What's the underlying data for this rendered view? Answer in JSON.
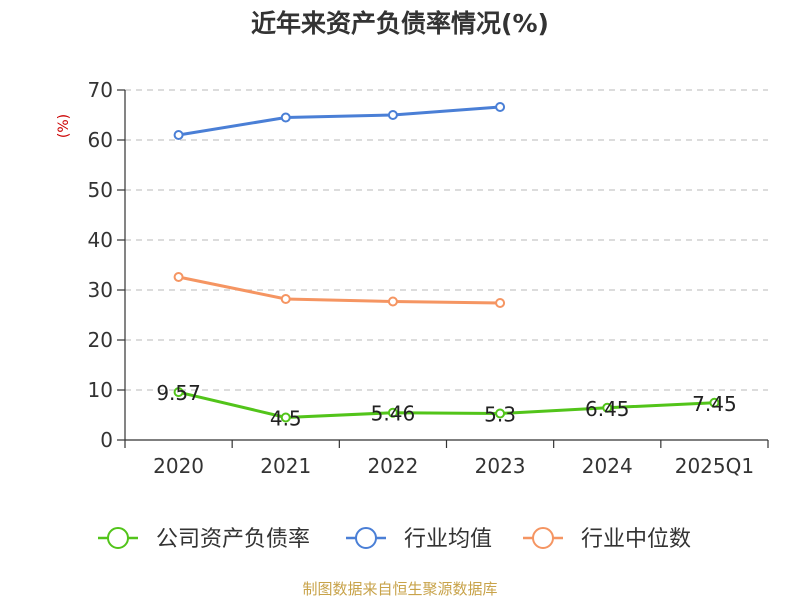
{
  "chart_data": {
    "type": "line",
    "title": "近年来资产负债率情况(%)",
    "ylabel": "(%)",
    "xlabel": "",
    "categories": [
      "2020",
      "2021",
      "2022",
      "2023",
      "2024",
      "2025Q1"
    ],
    "yticks": [
      "0",
      "10",
      "20",
      "30",
      "40",
      "50",
      "60",
      "70"
    ],
    "ylim": [
      0,
      70
    ],
    "grid": true,
    "legend_position": "bottom",
    "series": [
      {
        "name": "公司资产负债率",
        "color": "#52c41a",
        "values": [
          9.57,
          4.5,
          5.46,
          5.3,
          6.45,
          7.45
        ],
        "labels": [
          "9.57",
          "4.5",
          "5.46",
          "5.3",
          "6.45",
          "7.45"
        ]
      },
      {
        "name": "行业均值",
        "color": "#4a7fd6",
        "values": [
          61,
          64.5,
          65,
          66.6,
          null,
          null
        ]
      },
      {
        "name": "行业中位数",
        "color": "#f59562",
        "values": [
          32.6,
          28.2,
          27.7,
          27.4,
          null,
          null
        ]
      }
    ],
    "source": "制图数据来自恒生聚源数据库"
  }
}
